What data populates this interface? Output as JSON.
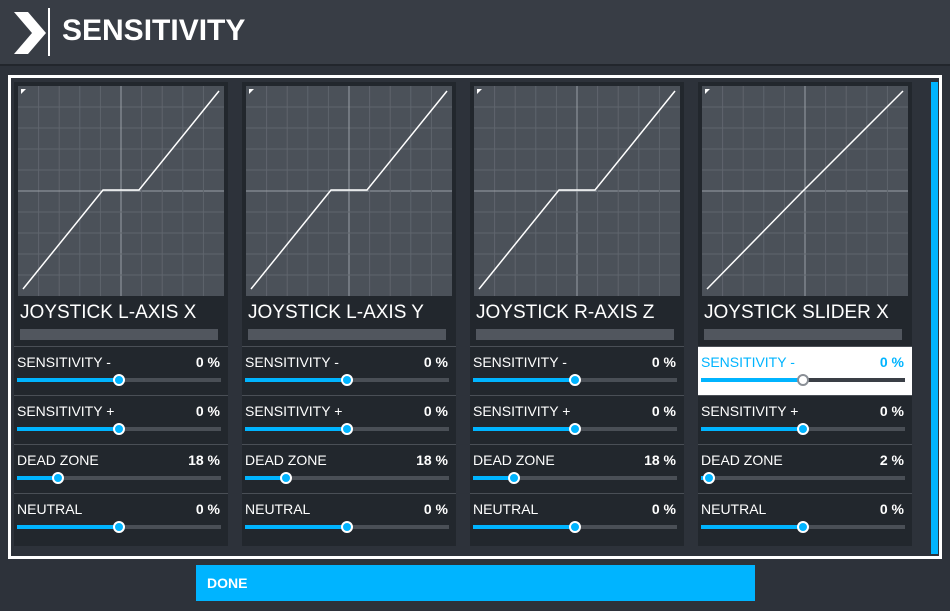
{
  "header": {
    "title": "SENSITIVITY"
  },
  "panels": [
    {
      "name": "JOYSTICK L-AXIS X",
      "curve": "deadzone",
      "rows": [
        {
          "label": "SENSITIVITY -",
          "value": "0 %",
          "level": 0.5,
          "active": false
        },
        {
          "label": "SENSITIVITY +",
          "value": "0 %",
          "level": 0.5,
          "active": false
        },
        {
          "label": "DEAD ZONE",
          "value": "18 %",
          "level": 0.2,
          "active": false
        },
        {
          "label": "NEUTRAL",
          "value": "0 %",
          "level": 0.5,
          "active": false
        }
      ]
    },
    {
      "name": "JOYSTICK L-AXIS Y",
      "curve": "deadzone",
      "rows": [
        {
          "label": "SENSITIVITY -",
          "value": "0 %",
          "level": 0.5,
          "active": false
        },
        {
          "label": "SENSITIVITY +",
          "value": "0 %",
          "level": 0.5,
          "active": false
        },
        {
          "label": "DEAD ZONE",
          "value": "18 %",
          "level": 0.2,
          "active": false
        },
        {
          "label": "NEUTRAL",
          "value": "0 %",
          "level": 0.5,
          "active": false
        }
      ]
    },
    {
      "name": "JOYSTICK R-AXIS Z",
      "curve": "deadzone",
      "rows": [
        {
          "label": "SENSITIVITY -",
          "value": "0 %",
          "level": 0.5,
          "active": false
        },
        {
          "label": "SENSITIVITY +",
          "value": "0 %",
          "level": 0.5,
          "active": false
        },
        {
          "label": "DEAD ZONE",
          "value": "18 %",
          "level": 0.2,
          "active": false
        },
        {
          "label": "NEUTRAL",
          "value": "0 %",
          "level": 0.5,
          "active": false
        }
      ]
    },
    {
      "name": "JOYSTICK SLIDER X",
      "curve": "linear",
      "rows": [
        {
          "label": "SENSITIVITY -",
          "value": "0 %",
          "level": 0.5,
          "active": true
        },
        {
          "label": "SENSITIVITY +",
          "value": "0 %",
          "level": 0.5,
          "active": false
        },
        {
          "label": "DEAD ZONE",
          "value": "2 %",
          "level": 0.04,
          "active": false
        },
        {
          "label": "NEUTRAL",
          "value": "0 %",
          "level": 0.5,
          "active": false
        }
      ]
    }
  ],
  "footer": {
    "done_label": "DONE"
  },
  "colors": {
    "accent": "#00b4ff",
    "panel": "#22272d",
    "graph_bg": "#4b5159"
  },
  "icons": {
    "back": "chevron-right-icon"
  }
}
